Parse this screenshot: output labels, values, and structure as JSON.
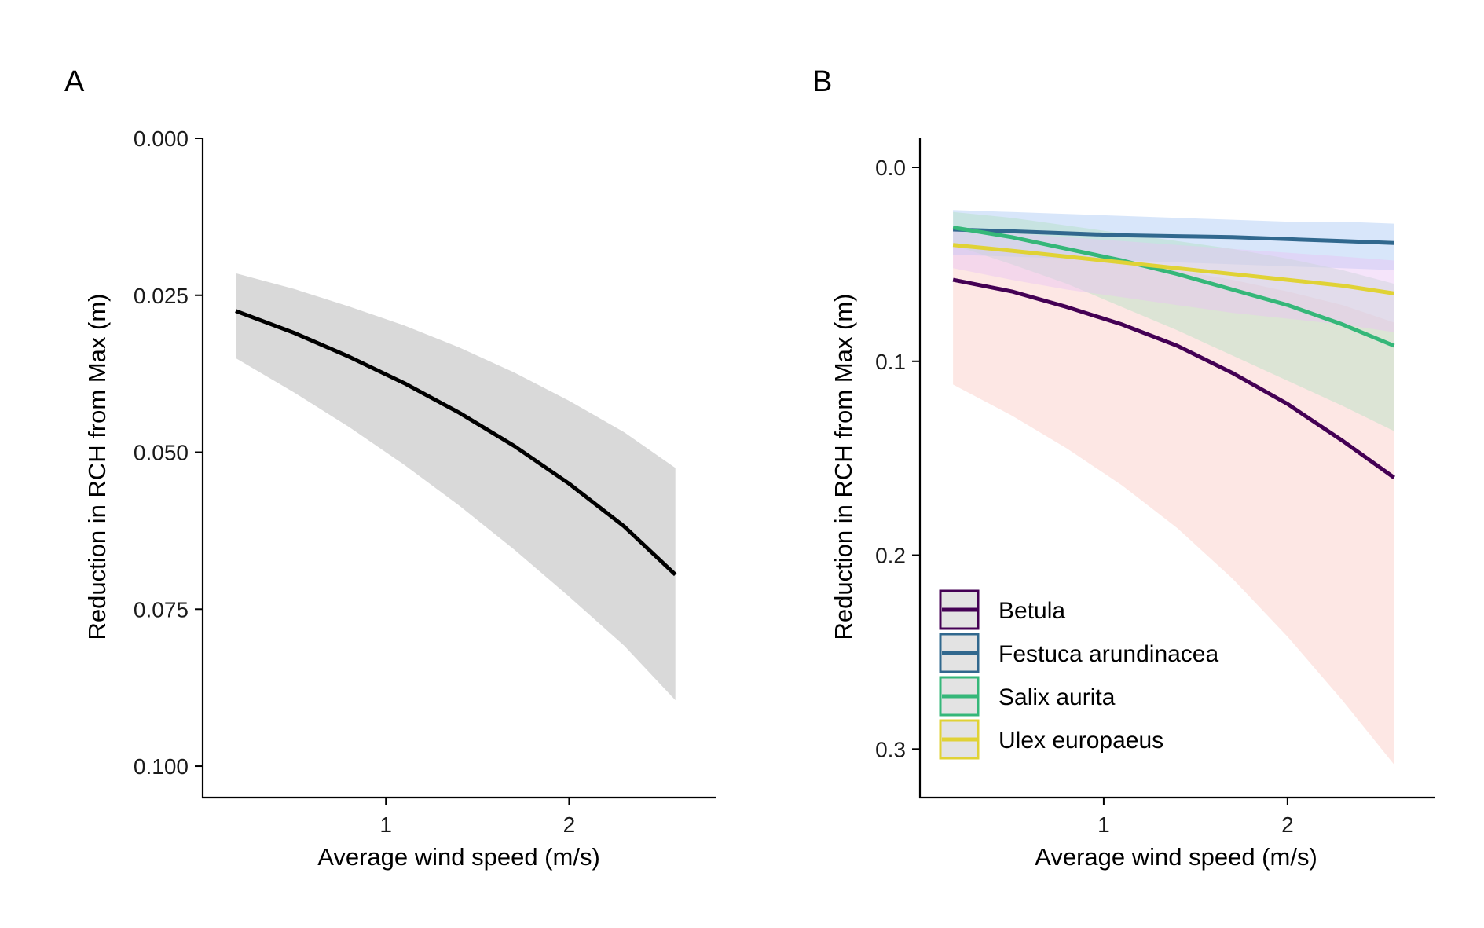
{
  "chart_data": [
    {
      "panel": "A",
      "type": "line",
      "xlabel": "Average wind speed (m/s)",
      "ylabel": "Reduction in RCH from Max (m)",
      "x_ticks": [
        "1",
        "2"
      ],
      "y_ticks": [
        "0.000",
        "0.025",
        "0.050",
        "0.075",
        "0.100"
      ],
      "xlim": [
        0.0,
        2.8
      ],
      "ylim": [
        0.0,
        0.105
      ],
      "y_reversed": true,
      "line_color": "#000000",
      "ribbon_color": "#d9d9d9",
      "series": [
        {
          "x": [
            0.18,
            0.5,
            0.8,
            1.1,
            1.4,
            1.7,
            2.0,
            2.3,
            2.58
          ],
          "values": [
            0.0275,
            0.031,
            0.0348,
            0.039,
            0.0437,
            0.049,
            0.055,
            0.0618,
            0.0695
          ],
          "lower": [
            0.0215,
            0.024,
            0.0268,
            0.0298,
            0.0333,
            0.0373,
            0.0418,
            0.0468,
            0.0525
          ],
          "upper": [
            0.035,
            0.0405,
            0.046,
            0.052,
            0.0585,
            0.0655,
            0.073,
            0.0808,
            0.0895
          ]
        }
      ]
    },
    {
      "panel": "B",
      "type": "line",
      "xlabel": "Average wind speed (m/s)",
      "ylabel": "Reduction in RCH from Max (m)",
      "x_ticks": [
        "1",
        "2"
      ],
      "y_ticks": [
        "0.0",
        "0.1",
        "0.2",
        "0.3"
      ],
      "xlim": [
        0.0,
        2.8
      ],
      "ylim": [
        -0.015,
        0.325
      ],
      "y_reversed": true,
      "legend_position": "bottom-left",
      "series": [
        {
          "name": "Betula",
          "color": "#440154",
          "ribbon_color": "#fbcac4",
          "x": [
            0.18,
            0.5,
            0.8,
            1.1,
            1.4,
            1.7,
            2.0,
            2.3,
            2.58
          ],
          "values": [
            0.058,
            0.064,
            0.072,
            0.081,
            0.092,
            0.106,
            0.122,
            0.141,
            0.16
          ],
          "lower": [
            0.04,
            0.042,
            0.045,
            0.049,
            0.053,
            0.058,
            0.064,
            0.071,
            0.08
          ],
          "upper": [
            0.112,
            0.128,
            0.145,
            0.164,
            0.186,
            0.212,
            0.242,
            0.275,
            0.308
          ]
        },
        {
          "name": "Festuca arundinacea",
          "color": "#31688e",
          "ribbon_color": "#a9c7f5",
          "x": [
            0.18,
            0.5,
            0.8,
            1.1,
            1.4,
            1.7,
            2.0,
            2.3,
            2.58
          ],
          "values": [
            0.032,
            0.033,
            0.034,
            0.035,
            0.0355,
            0.036,
            0.037,
            0.038,
            0.039
          ],
          "lower": [
            0.022,
            0.023,
            0.024,
            0.025,
            0.026,
            0.027,
            0.028,
            0.028,
            0.029
          ],
          "upper": [
            0.045,
            0.046,
            0.047,
            0.048,
            0.049,
            0.05,
            0.051,
            0.052,
            0.053
          ]
        },
        {
          "name": "Salix aurita",
          "color": "#35b779",
          "ribbon_color": "#b3dfc4",
          "x": [
            0.18,
            0.5,
            0.8,
            1.1,
            1.4,
            1.7,
            2.0,
            2.3,
            2.58
          ],
          "values": [
            0.031,
            0.036,
            0.042,
            0.048,
            0.055,
            0.063,
            0.071,
            0.081,
            0.092
          ],
          "lower": [
            0.023,
            0.026,
            0.03,
            0.034,
            0.038,
            0.042,
            0.047,
            0.053,
            0.06
          ],
          "upper": [
            0.04,
            0.05,
            0.06,
            0.072,
            0.084,
            0.097,
            0.11,
            0.123,
            0.136
          ]
        },
        {
          "name": "Ulex europaeus",
          "color": "#e0d235",
          "ribbon_color": "#e9c3f5",
          "x": [
            0.18,
            0.5,
            0.8,
            1.1,
            1.4,
            1.7,
            2.0,
            2.3,
            2.58
          ],
          "values": [
            0.04,
            0.043,
            0.046,
            0.049,
            0.052,
            0.055,
            0.058,
            0.061,
            0.065
          ],
          "lower": [
            0.032,
            0.034,
            0.036,
            0.038,
            0.04,
            0.042,
            0.044,
            0.046,
            0.048
          ],
          "upper": [
            0.052,
            0.058,
            0.063,
            0.067,
            0.071,
            0.075,
            0.078,
            0.081,
            0.085
          ]
        }
      ]
    }
  ]
}
